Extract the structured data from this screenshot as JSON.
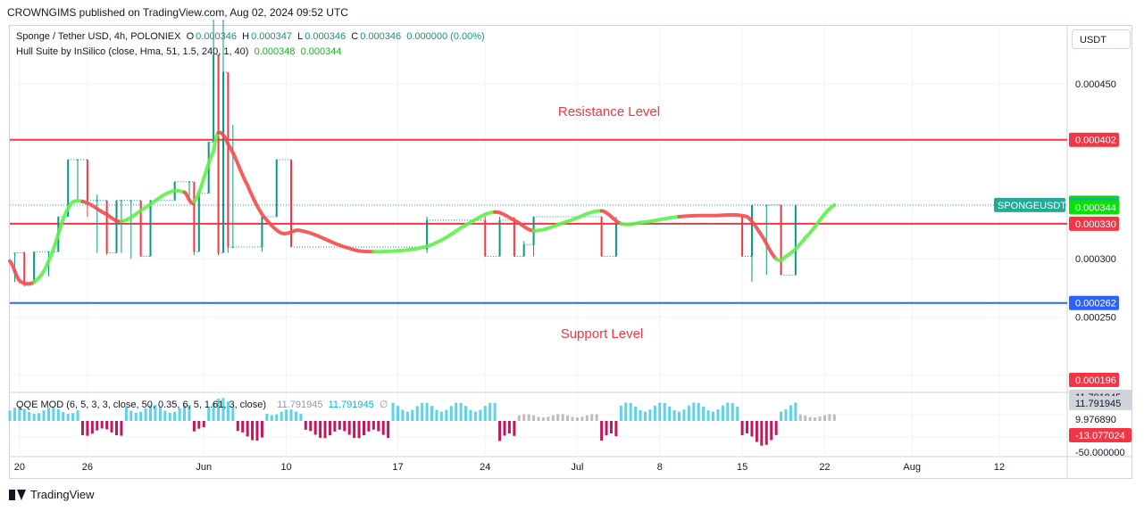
{
  "header": {
    "published": "CROWNGIMS published on TradingView.com, Aug 02, 2024 09:52 UTC"
  },
  "legend": {
    "symbol": "Sponge / Tether USD, 4h, POLONIEX",
    "o_label": "O",
    "o_value": "0.000346",
    "h_label": "H",
    "h_value": "0.000347",
    "l_label": "L",
    "l_value": "0.000346",
    "c_label": "C",
    "c_value": "0.000346",
    "change": "0.000000 (0.00%)",
    "hull_name": "Hull Suite by InSilico (close, Hma, 51, 1.5, 240, 1, 40)",
    "hull_value1": "0.000348",
    "hull_value2": "0.000344",
    "qqe_name": "QQE MOD (6, 5, 3, 3, close, 50, 0.35, 6, 5, 1.61, 3, close)",
    "qqe_value1": "11.791945",
    "qqe_value2": "11.791945",
    "qqe_value3": "∅"
  },
  "currency_button": "USDT",
  "footer": {
    "brand": "TradingView"
  },
  "chart_data": {
    "type": "candlestick",
    "symbol": "SPONGEUSDT",
    "y_axis_ticks": [
      "0.000450",
      "0.000300",
      "0.000250"
    ],
    "y_axis_tick_values": [
      0.00045,
      0.0003,
      0.00025
    ],
    "x_axis_ticks": [
      "20",
      "26",
      "Jun",
      "10",
      "17",
      "24",
      "Jul",
      "8",
      "15",
      "22",
      "Aug",
      "12"
    ],
    "price_labels": [
      {
        "text": "0.000402",
        "value": 0.000402,
        "color": "#f23645"
      },
      {
        "text": "0.000348",
        "value": 0.000348,
        "color": "#00e600"
      },
      {
        "text": "0.000346",
        "value": 0.000346,
        "color": "#22ab94"
      },
      {
        "text": "0.000344",
        "value": 0.000344,
        "color": "#00e600"
      },
      {
        "text": "0.000330",
        "value": 0.00033,
        "color": "#f23645"
      },
      {
        "text": "0.000262",
        "value": 0.000262,
        "color": "#2962ff"
      },
      {
        "text": "0.000196",
        "value": 0.000196,
        "color": "#f23645"
      }
    ],
    "symbol_tag": "SPONGEUSDT",
    "annotations": [
      {
        "text": "Resistance Level",
        "color": "#f23645"
      },
      {
        "text": "Support Level",
        "color": "#f23645"
      }
    ],
    "horizontal_lines": [
      {
        "name": "resistance-upper",
        "value": 0.000402,
        "color": "#f23645"
      },
      {
        "name": "resistance-lower",
        "value": 0.00033,
        "color": "#f23645"
      },
      {
        "name": "support",
        "value": 0.000262,
        "color": "#2962ff"
      }
    ],
    "price_scale": {
      "min": 0.000196,
      "max": 0.000505
    },
    "hull_line": [
      {
        "t": 0,
        "v": 0.000298
      },
      {
        "t": 2,
        "v": 0.000281
      },
      {
        "t": 5,
        "v": 0.00028
      },
      {
        "t": 8,
        "v": 0.000298
      },
      {
        "t": 12,
        "v": 0.000343
      },
      {
        "t": 15,
        "v": 0.000349
      },
      {
        "t": 20,
        "v": 0.000338
      },
      {
        "t": 23,
        "v": 0.000332
      },
      {
        "t": 28,
        "v": 0.000344
      },
      {
        "t": 33,
        "v": 0.000357
      },
      {
        "t": 36,
        "v": 0.000357
      },
      {
        "t": 38,
        "v": 0.000349
      },
      {
        "t": 42,
        "v": 0.000392
      },
      {
        "t": 43,
        "v": 0.000408
      },
      {
        "t": 45,
        "v": 0.000398
      },
      {
        "t": 49,
        "v": 0.000363
      },
      {
        "t": 52,
        "v": 0.000338
      },
      {
        "t": 56,
        "v": 0.000322
      },
      {
        "t": 60,
        "v": 0.000324
      },
      {
        "t": 70,
        "v": 0.000309
      },
      {
        "t": 75,
        "v": 0.000306
      },
      {
        "t": 83,
        "v": 0.000308
      },
      {
        "t": 88,
        "v": 0.000314
      },
      {
        "t": 95,
        "v": 0.000331
      },
      {
        "t": 100,
        "v": 0.00034
      },
      {
        "t": 104,
        "v": 0.000333
      },
      {
        "t": 108,
        "v": 0.000324
      },
      {
        "t": 115,
        "v": 0.000332
      },
      {
        "t": 122,
        "v": 0.000341
      },
      {
        "t": 126,
        "v": 0.00033
      },
      {
        "t": 130,
        "v": 0.000331
      },
      {
        "t": 138,
        "v": 0.000336
      },
      {
        "t": 145,
        "v": 0.000337
      },
      {
        "t": 152,
        "v": 0.000336
      },
      {
        "t": 155,
        "v": 0.00032
      },
      {
        "t": 158,
        "v": 0.0003
      },
      {
        "t": 160,
        "v": 0.000302
      },
      {
        "t": 164,
        "v": 0.000318
      },
      {
        "t": 170,
        "v": 0.000346
      }
    ],
    "hull_colors": [
      {
        "from": 0,
        "to": 5,
        "color": "red"
      },
      {
        "from": 5,
        "to": 15,
        "color": "green"
      },
      {
        "from": 15,
        "to": 23,
        "color": "red"
      },
      {
        "from": 23,
        "to": 36,
        "color": "green"
      },
      {
        "from": 36,
        "to": 38,
        "color": "red"
      },
      {
        "from": 38,
        "to": 43,
        "color": "green"
      },
      {
        "from": 43,
        "to": 75,
        "color": "red"
      },
      {
        "from": 75,
        "to": 100,
        "color": "green"
      },
      {
        "from": 100,
        "to": 108,
        "color": "red"
      },
      {
        "from": 108,
        "to": 122,
        "color": "green"
      },
      {
        "from": 122,
        "to": 126,
        "color": "red"
      },
      {
        "from": 126,
        "to": 138,
        "color": "green"
      },
      {
        "from": 138,
        "to": 158,
        "color": "red"
      },
      {
        "from": 158,
        "to": 170,
        "color": "green"
      }
    ],
    "qqe": {
      "axis_ticks": [
        "9.976890",
        "-50.000000"
      ],
      "labels": [
        {
          "text": "11.791945",
          "color": "#d1d4dc",
          "text_color": "#131722"
        },
        {
          "text": "11.791945",
          "color": "#d1d4dc",
          "text_color": "#131722"
        },
        {
          "text": "-13.077024",
          "color": "#f23645",
          "text_color": "#ffffff"
        }
      ],
      "histogram_segments": [
        {
          "from": 0,
          "to": 14,
          "sign": 1,
          "amp": 0.6
        },
        {
          "from": 15,
          "to": 23,
          "sign": -1,
          "amp": 0.6
        },
        {
          "from": 24,
          "to": 37,
          "sign": 1,
          "amp": 0.7
        },
        {
          "from": 38,
          "to": 40,
          "sign": -1,
          "amp": 0.5
        },
        {
          "from": 41,
          "to": 46,
          "sign": 1,
          "amp": 1.0
        },
        {
          "from": 47,
          "to": 52,
          "sign": -1,
          "amp": 0.8
        },
        {
          "from": 53,
          "to": 60,
          "sign": 1,
          "amp": 0.5
        },
        {
          "from": 61,
          "to": 78,
          "sign": -1,
          "amp": 0.7
        },
        {
          "from": 79,
          "to": 100,
          "sign": 1,
          "amp": 0.8
        },
        {
          "from": 101,
          "to": 104,
          "sign": -1,
          "amp": 1.0
        },
        {
          "from": 105,
          "to": 121,
          "sign": 1,
          "amp": 0.3
        },
        {
          "from": 122,
          "to": 125,
          "sign": -1,
          "amp": 1.0
        },
        {
          "from": 126,
          "to": 150,
          "sign": 1,
          "amp": 0.8
        },
        {
          "from": 151,
          "to": 158,
          "sign": -1,
          "amp": 1.0
        },
        {
          "from": 159,
          "to": 162,
          "sign": 1,
          "amp": 0.8
        },
        {
          "from": 163,
          "to": 170,
          "sign": 1,
          "amp": 0.3
        }
      ]
    },
    "candles": [
      {
        "t": 1,
        "o": 0.000305,
        "c": 0.000305,
        "h": 0.000305,
        "l": 0.00028
      },
      {
        "t": 3,
        "o": 0.000305,
        "c": 0.00028,
        "h": 0.000306,
        "l": 0.000276
      },
      {
        "t": 5,
        "o": 0.00028,
        "c": 0.000306,
        "h": 0.000306,
        "l": 0.00028
      },
      {
        "t": 8,
        "o": 0.000306,
        "c": 0.000306,
        "h": 0.000306,
        "l": 0.000285
      },
      {
        "t": 10,
        "o": 0.000306,
        "c": 0.000336,
        "h": 0.000336,
        "l": 0.000306
      },
      {
        "t": 12,
        "o": 0.000336,
        "c": 0.000385,
        "h": 0.000385,
        "l": 0.000336
      },
      {
        "t": 14,
        "o": 0.000385,
        "c": 0.000385,
        "h": 0.000385,
        "l": 0.00035
      },
      {
        "t": 16,
        "o": 0.000385,
        "c": 0.00035,
        "h": 0.000385,
        "l": 0.000336
      },
      {
        "t": 18,
        "o": 0.00035,
        "c": 0.00035,
        "h": 0.000355,
        "l": 0.000305
      },
      {
        "t": 20,
        "o": 0.00035,
        "c": 0.000305,
        "h": 0.00035,
        "l": 0.000303
      },
      {
        "t": 22,
        "o": 0.000305,
        "c": 0.00035,
        "h": 0.00035,
        "l": 0.000305
      },
      {
        "t": 23,
        "o": 0.00035,
        "c": 0.00035,
        "h": 0.00035,
        "l": 0.000305
      },
      {
        "t": 25,
        "o": 0.00035,
        "c": 0.00035,
        "h": 0.00035,
        "l": 0.0003
      },
      {
        "t": 27,
        "o": 0.00035,
        "c": 0.000302,
        "h": 0.00035,
        "l": 0.000302
      },
      {
        "t": 29,
        "o": 0.000302,
        "c": 0.00035,
        "h": 0.00035,
        "l": 0.000302
      },
      {
        "t": 34,
        "o": 0.00035,
        "c": 0.000366,
        "h": 0.000366,
        "l": 0.00035
      },
      {
        "t": 37,
        "o": 0.000366,
        "c": 0.000366,
        "h": 0.000366,
        "l": 0.00035
      },
      {
        "t": 38,
        "o": 0.000366,
        "c": 0.000306,
        "h": 0.000366,
        "l": 0.000303
      },
      {
        "t": 39,
        "o": 0.000306,
        "c": 0.000356,
        "h": 0.000356,
        "l": 0.000306
      },
      {
        "t": 41,
        "o": 0.000356,
        "c": 0.0004,
        "h": 0.0004,
        "l": 0.000356
      },
      {
        "t": 42,
        "o": 0.0004,
        "c": 0.000475,
        "h": 0.000505,
        "l": 0.0004
      },
      {
        "t": 43,
        "o": 0.000475,
        "c": 0.000305,
        "h": 0.000475,
        "l": 0.000303
      },
      {
        "t": 44,
        "o": 0.000305,
        "c": 0.00046,
        "h": 0.000505,
        "l": 0.000305
      },
      {
        "t": 45,
        "o": 0.00046,
        "c": 0.00031,
        "h": 0.00046,
        "l": 0.000305
      },
      {
        "t": 46,
        "o": 0.00031,
        "c": 0.00031,
        "h": 0.000415,
        "l": 0.00031
      },
      {
        "t": 52,
        "o": 0.00031,
        "c": 0.000336,
        "h": 0.000336,
        "l": 0.000306
      },
      {
        "t": 55,
        "o": 0.000336,
        "c": 0.000385,
        "h": 0.000385,
        "l": 0.000336
      },
      {
        "t": 58,
        "o": 0.000385,
        "c": 0.00031,
        "h": 0.000385,
        "l": 0.00031
      },
      {
        "t": 86,
        "o": 0.000308,
        "c": 0.000333,
        "h": 0.000336,
        "l": 0.000305
      },
      {
        "t": 98,
        "o": 0.000333,
        "c": 0.000302,
        "h": 0.000336,
        "l": 0.000302
      },
      {
        "t": 101,
        "o": 0.000302,
        "c": 0.000333,
        "h": 0.000336,
        "l": 0.000302
      },
      {
        "t": 104,
        "o": 0.000333,
        "c": 0.000302,
        "h": 0.000336,
        "l": 0.000302
      },
      {
        "t": 106,
        "o": 0.000302,
        "c": 0.000312,
        "h": 0.000315,
        "l": 0.000302
      },
      {
        "t": 108,
        "o": 0.000312,
        "c": 0.000336,
        "h": 0.000336,
        "l": 0.000302
      },
      {
        "t": 122,
        "o": 0.000336,
        "c": 0.000302,
        "h": 0.000336,
        "l": 0.000302
      },
      {
        "t": 125,
        "o": 0.000302,
        "c": 0.00033,
        "h": 0.000336,
        "l": 0.000302
      },
      {
        "t": 151,
        "o": 0.000336,
        "c": 0.000302,
        "h": 0.000336,
        "l": 0.000302
      },
      {
        "t": 153,
        "o": 0.000302,
        "c": 0.000346,
        "h": 0.000346,
        "l": 0.00028
      },
      {
        "t": 156,
        "o": 0.000346,
        "c": 0.000346,
        "h": 0.000346,
        "l": 0.000286
      },
      {
        "t": 159,
        "o": 0.000346,
        "c": 0.000286,
        "h": 0.000346,
        "l": 0.000286
      },
      {
        "t": 162,
        "o": 0.000286,
        "c": 0.000346,
        "h": 0.000346,
        "l": 0.000286
      }
    ]
  }
}
